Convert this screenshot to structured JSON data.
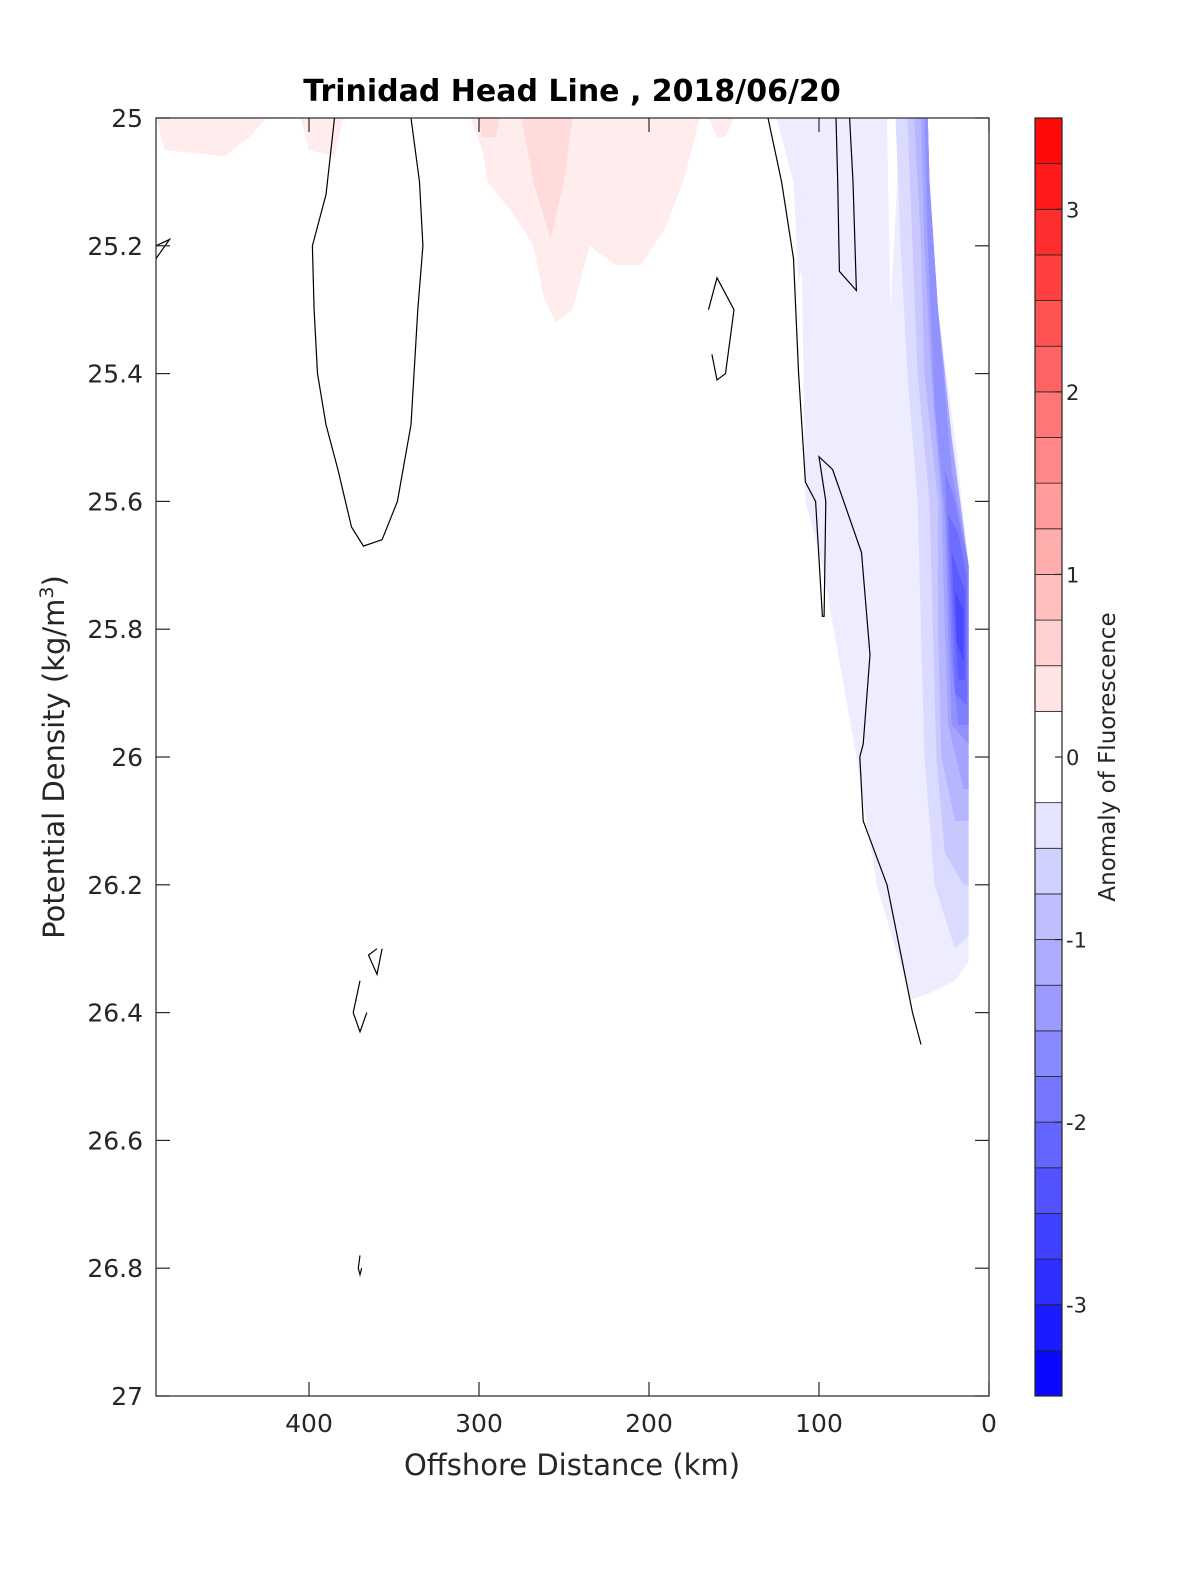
{
  "chart_data": {
    "type": "contour",
    "title": "Trinidad Head Line , 2018/06/20",
    "xlabel": "Offshore Distance (km)",
    "ylabel": "Potential Density (kg/m³)",
    "ylabel_main": "Potential Density (kg/m",
    "ylabel_sup": "3",
    "ylabel_close": ")",
    "colorbar_label": "Anomaly of Fluorescence",
    "x_axis": {
      "lim": [
        490,
        0
      ],
      "reversed": true,
      "ticks": [
        400,
        300,
        200,
        100,
        0
      ],
      "tick_labels": [
        "400",
        "300",
        "200",
        "100",
        "0"
      ]
    },
    "y_axis": {
      "lim": [
        25,
        27
      ],
      "reversed": true,
      "ticks": [
        25,
        25.2,
        25.4,
        25.6,
        25.8,
        26,
        26.2,
        26.4,
        26.6,
        26.8,
        27
      ],
      "tick_labels": [
        "25",
        "25.2",
        "25.4",
        "25.6",
        "25.8",
        "26",
        "26.2",
        "26.4",
        "26.6",
        "26.8",
        "27"
      ]
    },
    "colorbar": {
      "lim": [
        -3.5,
        3.5
      ],
      "ticks": [
        3,
        2,
        1,
        0,
        -1,
        -2,
        -3
      ],
      "tick_labels": [
        "3",
        "2",
        "1",
        "0",
        "-1",
        "-2",
        "-3"
      ],
      "levels": [
        -3.5,
        -3.25,
        -3.0,
        -2.75,
        -2.5,
        -2.25,
        -2.0,
        -1.75,
        -1.5,
        -1.25,
        -1.0,
        -0.75,
        -0.5,
        -0.25,
        0.25,
        0.5,
        0.75,
        1.0,
        1.25,
        1.5,
        1.75,
        2.0,
        2.25,
        2.5,
        2.75,
        3.0,
        3.25,
        3.5
      ],
      "colormap": "blue-white-red"
    },
    "positive_anomaly_regions": [
      {
        "level": 0.25,
        "points": [
          [
            490,
            25.0
          ],
          [
            485,
            25.05
          ],
          [
            450,
            25.06
          ],
          [
            435,
            25.03
          ],
          [
            425,
            25.0
          ]
        ]
      },
      {
        "level": 0.25,
        "points": [
          [
            405,
            25.0
          ],
          [
            400,
            25.05
          ],
          [
            385,
            25.06
          ],
          [
            380,
            25.0
          ]
        ]
      },
      {
        "level": 0.25,
        "points": [
          [
            305,
            25.0
          ],
          [
            298,
            25.05
          ],
          [
            295,
            25.1
          ],
          [
            280,
            25.15
          ],
          [
            268,
            25.2
          ],
          [
            262,
            25.28
          ],
          [
            255,
            25.32
          ],
          [
            245,
            25.3
          ],
          [
            235,
            25.2
          ],
          [
            220,
            25.23
          ],
          [
            205,
            25.23
          ],
          [
            190,
            25.17
          ],
          [
            180,
            25.1
          ],
          [
            175,
            25.05
          ],
          [
            170,
            25.0
          ]
        ]
      },
      {
        "level": 0.25,
        "points": [
          [
            165,
            25.0
          ],
          [
            160,
            25.03
          ],
          [
            155,
            25.03
          ],
          [
            150,
            25.0
          ]
        ]
      },
      {
        "level": 0.5,
        "points": [
          [
            275,
            25.0
          ],
          [
            268,
            25.1
          ],
          [
            258,
            25.19
          ],
          [
            250,
            25.1
          ],
          [
            245,
            25.0
          ]
        ]
      },
      {
        "level": 0.5,
        "points": [
          [
            300,
            25.0
          ],
          [
            298,
            25.03
          ],
          [
            290,
            25.03
          ],
          [
            288,
            25.0
          ]
        ]
      }
    ],
    "negative_anomaly_regions": [
      {
        "level": -0.25,
        "points": [
          [
            125,
            25.0
          ],
          [
            115,
            25.1
          ],
          [
            110,
            25.25
          ],
          [
            108,
            25.6
          ],
          [
            98,
            25.7
          ],
          [
            78,
            26.0
          ],
          [
            66,
            26.2
          ],
          [
            55,
            26.3
          ],
          [
            46,
            26.38
          ],
          [
            35,
            26.37
          ],
          [
            20,
            26.35
          ],
          [
            12,
            26.32
          ],
          [
            12,
            25.7
          ],
          [
            20,
            25.5
          ],
          [
            30,
            25.3
          ],
          [
            35,
            25.1
          ],
          [
            36,
            25.0
          ],
          [
            53,
            25.0
          ],
          [
            54,
            25.1
          ],
          [
            56,
            25.2
          ],
          [
            58,
            25.3
          ],
          [
            62,
            25.4
          ],
          [
            66,
            25.6
          ],
          [
            70,
            25.8
          ],
          [
            75,
            26.0
          ],
          [
            60,
            25.6
          ],
          [
            58,
            25.3
          ],
          [
            60,
            25.0
          ],
          [
            90,
            25.0
          ],
          [
            110,
            25.0
          ]
        ]
      },
      {
        "level": -0.5,
        "points": [
          [
            55,
            25.0
          ],
          [
            52,
            25.2
          ],
          [
            48,
            25.4
          ],
          [
            42,
            25.6
          ],
          [
            40,
            25.8
          ],
          [
            38,
            26.0
          ],
          [
            32,
            26.2
          ],
          [
            20,
            26.3
          ],
          [
            12,
            26.28
          ],
          [
            12,
            25.7
          ],
          [
            22,
            25.5
          ],
          [
            30,
            25.3
          ],
          [
            35,
            25.1
          ],
          [
            36,
            25.0
          ]
        ]
      },
      {
        "level": -0.75,
        "points": [
          [
            48,
            25.0
          ],
          [
            45,
            25.2
          ],
          [
            42,
            25.4
          ],
          [
            35,
            25.6
          ],
          [
            33,
            25.8
          ],
          [
            31,
            26.0
          ],
          [
            26,
            26.15
          ],
          [
            15,
            26.2
          ],
          [
            12,
            26.2
          ],
          [
            12,
            25.7
          ],
          [
            22,
            25.5
          ],
          [
            30,
            25.3
          ],
          [
            35,
            25.1
          ],
          [
            36,
            25.0
          ]
        ]
      },
      {
        "level": -1.0,
        "points": [
          [
            44,
            25.0
          ],
          [
            40,
            25.2
          ],
          [
            38,
            25.4
          ],
          [
            30,
            25.6
          ],
          [
            30,
            25.8
          ],
          [
            28,
            26.0
          ],
          [
            20,
            26.1
          ],
          [
            12,
            26.1
          ],
          [
            12,
            25.7
          ],
          [
            22,
            25.5
          ],
          [
            30,
            25.3
          ],
          [
            35,
            25.1
          ],
          [
            36,
            25.0
          ]
        ]
      },
      {
        "level": -1.25,
        "points": [
          [
            40,
            25.0
          ],
          [
            38,
            25.2
          ],
          [
            34,
            25.4
          ],
          [
            28,
            25.6
          ],
          [
            26,
            25.8
          ],
          [
            24,
            25.95
          ],
          [
            15,
            26.05
          ],
          [
            12,
            26.05
          ],
          [
            12,
            25.7
          ],
          [
            22,
            25.5
          ],
          [
            30,
            25.3
          ],
          [
            35,
            25.1
          ],
          [
            36,
            25.0
          ]
        ]
      },
      {
        "level": -1.5,
        "points": [
          [
            38,
            25.0
          ],
          [
            36,
            25.2
          ],
          [
            32,
            25.45
          ],
          [
            26,
            25.62
          ],
          [
            24,
            25.8
          ],
          [
            22,
            25.95
          ],
          [
            12,
            25.98
          ],
          [
            12,
            25.7
          ],
          [
            22,
            25.55
          ],
          [
            30,
            25.3
          ],
          [
            35,
            25.1
          ],
          [
            36,
            25.0
          ]
        ]
      },
      {
        "level": -1.75,
        "points": [
          [
            26,
            25.55
          ],
          [
            24,
            25.7
          ],
          [
            22,
            25.85
          ],
          [
            18,
            25.95
          ],
          [
            12,
            25.95
          ],
          [
            12,
            25.7
          ],
          [
            20,
            25.6
          ]
        ]
      },
      {
        "level": -2.0,
        "points": [
          [
            24,
            25.62
          ],
          [
            22,
            25.75
          ],
          [
            20,
            25.9
          ],
          [
            13,
            25.92
          ],
          [
            13,
            25.72
          ],
          [
            18,
            25.65
          ]
        ]
      },
      {
        "level": -2.25,
        "points": [
          [
            22,
            25.68
          ],
          [
            20,
            25.8
          ],
          [
            18,
            25.88
          ],
          [
            14,
            25.88
          ],
          [
            14,
            25.74
          ]
        ]
      },
      {
        "level": -2.5,
        "points": [
          [
            20,
            25.74
          ],
          [
            19,
            25.82
          ],
          [
            15,
            25.85
          ],
          [
            15,
            25.77
          ]
        ]
      },
      {
        "level": -0.25,
        "points": [
          [
            120,
            25.0
          ],
          [
            112,
            25.1
          ],
          [
            108,
            25.2
          ],
          [
            112,
            25.26
          ],
          [
            115,
            25.1
          ],
          [
            118,
            25.0
          ]
        ]
      }
    ],
    "zero_contours": [
      {
        "points": [
          [
            490,
            25.2
          ],
          [
            482,
            25.19
          ],
          [
            490,
            25.22
          ]
        ]
      },
      {
        "points": [
          [
            385,
            25.0
          ],
          [
            390,
            25.12
          ],
          [
            398,
            25.2
          ],
          [
            397,
            25.3
          ],
          [
            395,
            25.4
          ],
          [
            390,
            25.48
          ],
          [
            383,
            25.55
          ],
          [
            375,
            25.64
          ],
          [
            368,
            25.67
          ],
          [
            357,
            25.66
          ],
          [
            348,
            25.6
          ],
          [
            340,
            25.48
          ],
          [
            336,
            25.3
          ],
          [
            333,
            25.2
          ],
          [
            335,
            25.1
          ],
          [
            340,
            25.0
          ]
        ]
      },
      {
        "points": [
          [
            165,
            25.3
          ],
          [
            160,
            25.25
          ],
          [
            150,
            25.3
          ],
          [
            155,
            25.4
          ],
          [
            160,
            25.41
          ],
          [
            163,
            25.37
          ]
        ]
      },
      {
        "points": [
          [
            130,
            25.0
          ],
          [
            122,
            25.1
          ],
          [
            115,
            25.22
          ],
          [
            112,
            25.4
          ],
          [
            108,
            25.57
          ],
          [
            102,
            25.6
          ],
          [
            98,
            25.78
          ],
          [
            97,
            25.78
          ],
          [
            96,
            25.6
          ],
          [
            100,
            25.53
          ],
          [
            92,
            25.55
          ],
          [
            75,
            25.68
          ],
          [
            70,
            25.84
          ],
          [
            74,
            25.98
          ],
          [
            76,
            26.0
          ],
          [
            74,
            26.1
          ],
          [
            60,
            26.2
          ],
          [
            45,
            26.4
          ],
          [
            40,
            26.45
          ]
        ]
      },
      {
        "points": [
          [
            90,
            25.0
          ],
          [
            89,
            25.1
          ],
          [
            88,
            25.24
          ],
          [
            78,
            25.27
          ],
          [
            80,
            25.1
          ],
          [
            82,
            25.0
          ]
        ]
      },
      {
        "points": [
          [
            360,
            26.3
          ],
          [
            365,
            26.31
          ],
          [
            360,
            26.34
          ],
          [
            357,
            26.3
          ]
        ]
      },
      {
        "points": [
          [
            370,
            26.35
          ],
          [
            374,
            26.4
          ],
          [
            370,
            26.43
          ],
          [
            366,
            26.4
          ]
        ]
      },
      {
        "points": [
          [
            370,
            26.78
          ],
          [
            371,
            26.8
          ],
          [
            370,
            26.81
          ],
          [
            369,
            26.8
          ]
        ]
      }
    ],
    "grid": false,
    "colorbar_position": "right"
  }
}
